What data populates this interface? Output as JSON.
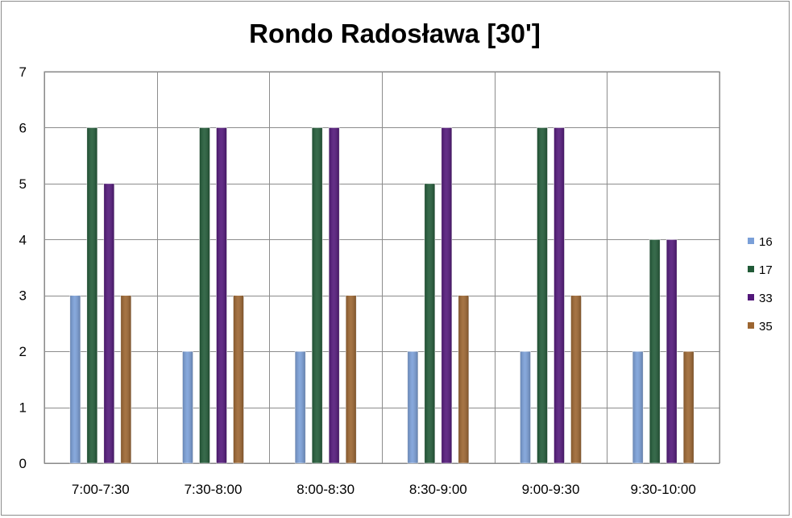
{
  "chart_data": {
    "type": "bar",
    "title": "Rondo Radosława [30']",
    "xlabel": "",
    "ylabel": "",
    "categories": [
      "7:00-7:30",
      "7:30-8:00",
      "8:00-8:30",
      "8:30-9:00",
      "9:00-9:30",
      "9:30-10:00"
    ],
    "series": [
      {
        "name": "16",
        "color": "#7a9fd8",
        "values": [
          3,
          2,
          2,
          2,
          2,
          2
        ]
      },
      {
        "name": "17",
        "color": "#215a37",
        "values": [
          6,
          6,
          6,
          5,
          6,
          4
        ]
      },
      {
        "name": "33",
        "color": "#52177a",
        "values": [
          5,
          6,
          6,
          6,
          6,
          4
        ]
      },
      {
        "name": "35",
        "color": "#9c6530",
        "values": [
          3,
          3,
          3,
          3,
          3,
          2
        ]
      }
    ],
    "ylim": [
      0,
      7
    ],
    "yticks": [
      0,
      1,
      2,
      3,
      4,
      5,
      6,
      7
    ],
    "grid": true,
    "legend_position": "right"
  }
}
